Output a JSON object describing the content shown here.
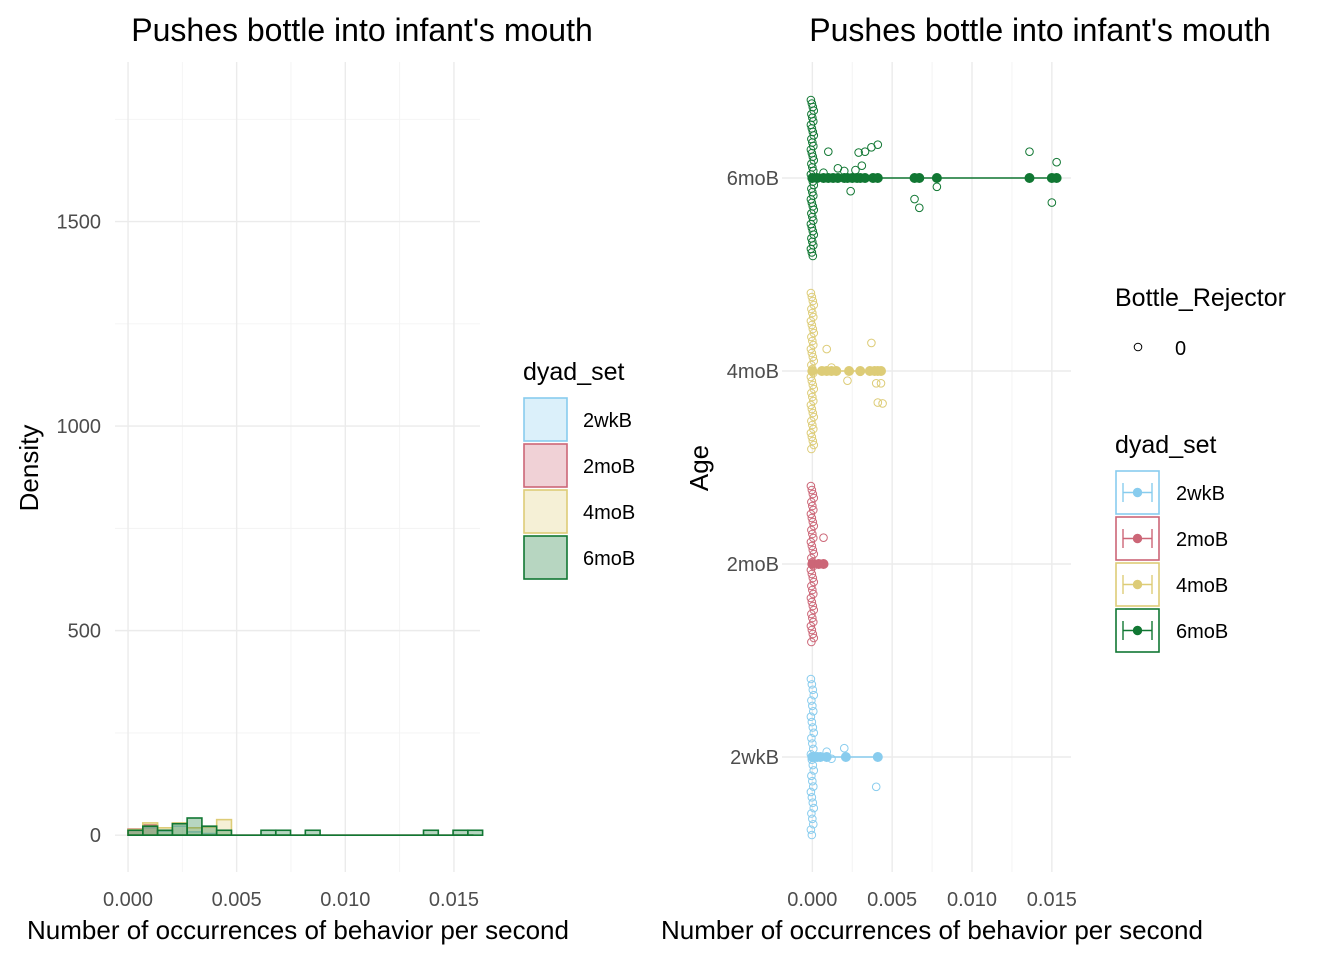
{
  "chart_data": [
    {
      "type": "histogram",
      "title": "Pushes bottle into infant's mouth",
      "xlabel": "Number of occurrences of behavior per second",
      "ylabel": "Density",
      "xlim": [
        -0.0006,
        0.0162
      ],
      "ylim": [
        -90,
        1890
      ],
      "x_ticks": [
        "0.000",
        "0.005",
        "0.010",
        "0.015"
      ],
      "y_ticks": [
        "0",
        "500",
        "1000",
        "1500"
      ],
      "bin_width": 0.00068,
      "grid": true,
      "legend": {
        "title": "dyad_set",
        "position": "right",
        "entries": [
          "2wkB",
          "2moB",
          "4moB",
          "6moB"
        ]
      },
      "series": [
        {
          "name": "2wkB",
          "color": "#88CCEE",
          "bins": [
            {
              "x": 0.00034,
              "y": 12
            },
            {
              "x": 0.00102,
              "y": 18
            },
            {
              "x": 0.0017,
              "y": 10
            },
            {
              "x": 0.00238,
              "y": 22
            },
            {
              "x": 0.00306,
              "y": 8
            },
            {
              "x": 0.00374,
              "y": 4
            }
          ]
        },
        {
          "name": "2moB",
          "color": "#CC6677",
          "bins": [
            {
              "x": 0.00034,
              "y": 15
            },
            {
              "x": 0.00102,
              "y": 25
            }
          ]
        },
        {
          "name": "4moB",
          "color": "#DDCC77",
          "bins": [
            {
              "x": 0.00034,
              "y": 14
            },
            {
              "x": 0.00102,
              "y": 30
            },
            {
              "x": 0.0017,
              "y": 18
            },
            {
              "x": 0.00238,
              "y": 30
            },
            {
              "x": 0.00306,
              "y": 18
            },
            {
              "x": 0.00374,
              "y": 20
            },
            {
              "x": 0.00442,
              "y": 38
            }
          ]
        },
        {
          "name": "6moB",
          "color": "#117733",
          "bins": [
            {
              "x": 0.00034,
              "y": 12
            },
            {
              "x": 0.00102,
              "y": 22
            },
            {
              "x": 0.0017,
              "y": 12
            },
            {
              "x": 0.00238,
              "y": 28
            },
            {
              "x": 0.00306,
              "y": 42
            },
            {
              "x": 0.00374,
              "y": 22
            },
            {
              "x": 0.00442,
              "y": 12
            },
            {
              "x": 0.00646,
              "y": 12
            },
            {
              "x": 0.00714,
              "y": 12
            },
            {
              "x": 0.0085,
              "y": 12
            },
            {
              "x": 0.01394,
              "y": 12
            },
            {
              "x": 0.0153,
              "y": 12
            },
            {
              "x": 0.01598,
              "y": 12
            }
          ]
        }
      ]
    },
    {
      "type": "scatter",
      "subtype": "jittered points with mean and range",
      "title": "Pushes bottle into infant's mouth",
      "xlabel": "Number of occurrences of behavior per second",
      "ylabel": "Age",
      "xlim": [
        -0.0019,
        0.0162
      ],
      "x_ticks": [
        "0.000",
        "0.005",
        "0.010",
        "0.015"
      ],
      "categories": [
        "2wkB",
        "2moB",
        "4moB",
        "6moB"
      ],
      "grid": true,
      "legends": [
        {
          "title": "Bottle_Rejector",
          "position": "right",
          "entries": [
            "0"
          ]
        },
        {
          "title": "dyad_set",
          "position": "right",
          "entries": [
            "2wkB",
            "2moB",
            "4moB",
            "6moB"
          ]
        }
      ],
      "series": [
        {
          "name": "2wkB",
          "color": "#88CCEE",
          "zero_count": 30,
          "jitter_points": [
            {
              "x": 0.0009,
              "y": 0.06
            },
            {
              "x": 0.0012,
              "y": -0.02
            },
            {
              "x": 0.002,
              "y": 0.1
            },
            {
              "x": 0.0021,
              "y": 0.0
            },
            {
              "x": 0.004,
              "y": -0.34
            }
          ],
          "mean_points": [
            0.0,
            0.0003,
            0.0005,
            0.0009,
            0.0021,
            0.0041
          ],
          "range_line": [
            0.0,
            0.0041
          ]
        },
        {
          "name": "2moB",
          "color": "#CC6677",
          "zero_count": 40,
          "jitter_points": [
            {
              "x": 0.0007,
              "y": 0.3
            }
          ],
          "mean_points": [
            0.0,
            0.0004,
            0.0007
          ],
          "range_line": [
            0.0,
            0.0007
          ]
        },
        {
          "name": "4moB",
          "color": "#DDCC77",
          "zero_count": 40,
          "jitter_points": [
            {
              "x": 0.0009,
              "y": 0.25
            },
            {
              "x": 0.0012,
              "y": 0.04
            },
            {
              "x": 0.0022,
              "y": -0.11
            },
            {
              "x": 0.0037,
              "y": 0.32
            },
            {
              "x": 0.004,
              "y": -0.14
            },
            {
              "x": 0.0043,
              "y": -0.14
            },
            {
              "x": 0.0041,
              "y": -0.36
            },
            {
              "x": 0.0044,
              "y": -0.37
            },
            {
              "x": 0.003,
              "y": -0.01
            }
          ],
          "mean_points": [
            0.0,
            0.0006,
            0.0009,
            0.0012,
            0.0015,
            0.0023,
            0.003,
            0.0036,
            0.0039,
            0.0041,
            0.0043
          ],
          "range_line": [
            0.0,
            0.0043
          ]
        },
        {
          "name": "6moB",
          "color": "#117733",
          "zero_count": 45,
          "jitter_points": [
            {
              "x": 0.001,
              "y": 0.3
            },
            {
              "x": 0.0016,
              "y": 0.11
            },
            {
              "x": 0.002,
              "y": 0.08
            },
            {
              "x": 0.0029,
              "y": 0.29
            },
            {
              "x": 0.0033,
              "y": 0.3
            },
            {
              "x": 0.0037,
              "y": 0.35
            },
            {
              "x": 0.0041,
              "y": 0.38
            },
            {
              "x": 0.0031,
              "y": 0.14
            },
            {
              "x": 0.0027,
              "y": 0.09
            },
            {
              "x": 0.0007,
              "y": 0.06
            },
            {
              "x": 0.0024,
              "y": -0.15
            },
            {
              "x": 0.0064,
              "y": -0.24
            },
            {
              "x": 0.0067,
              "y": -0.34
            },
            {
              "x": 0.0078,
              "y": -0.1
            },
            {
              "x": 0.0136,
              "y": 0.3
            },
            {
              "x": 0.0153,
              "y": 0.18
            },
            {
              "x": 0.015,
              "y": -0.28
            }
          ],
          "mean_points": [
            0.0,
            0.0003,
            0.0007,
            0.001,
            0.0013,
            0.0016,
            0.002,
            0.0022,
            0.0025,
            0.0028,
            0.003,
            0.0033,
            0.0038,
            0.0041,
            0.0064,
            0.0067,
            0.0078,
            0.0136,
            0.015,
            0.0153
          ],
          "range_line": [
            0.0,
            0.0155
          ]
        }
      ]
    }
  ]
}
